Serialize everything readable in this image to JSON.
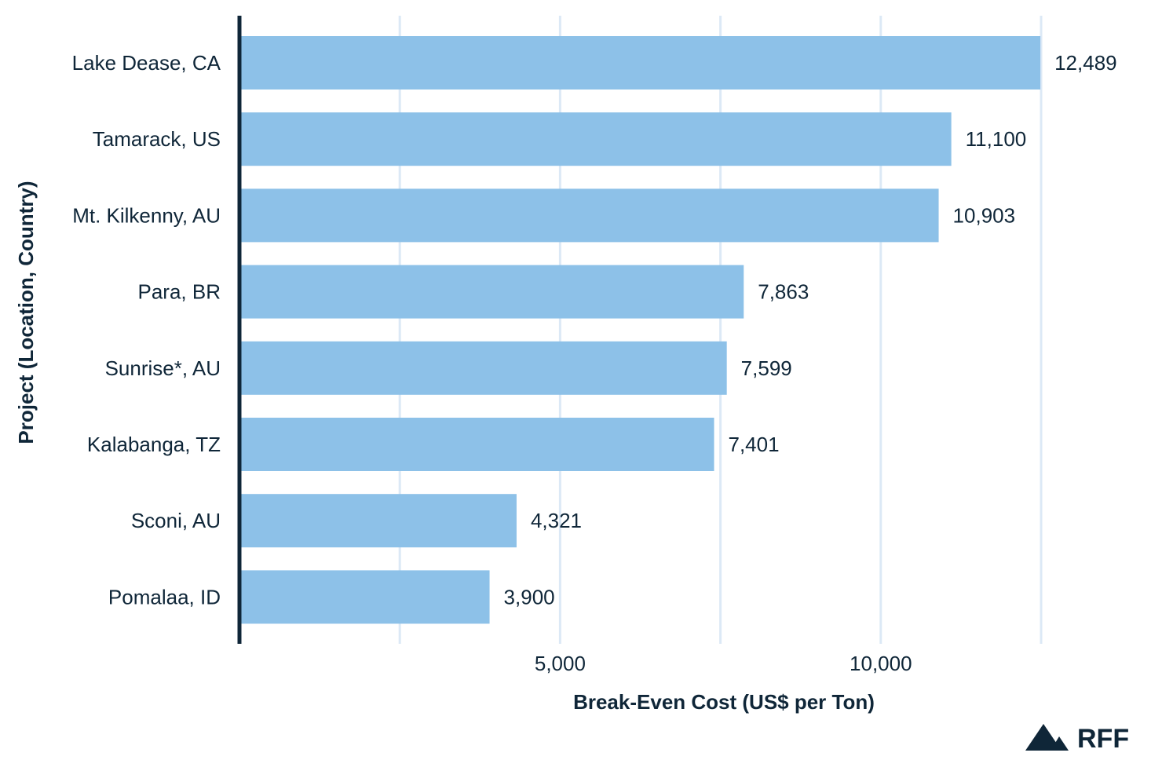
{
  "chart_data": {
    "type": "bar",
    "orientation": "horizontal",
    "categories": [
      "Lake Dease, CA",
      "Tamarack, US",
      "Mt. Kilkenny, AU",
      "Para, BR",
      "Sunrise*, AU",
      "Kalabanga, TZ",
      "Sconi, AU",
      "Pomalaa, ID"
    ],
    "values": [
      12489,
      11100,
      10903,
      7863,
      7599,
      7401,
      4321,
      3900
    ],
    "value_labels": [
      "12,489",
      "11,100",
      "10,903",
      "7,863",
      "7,599",
      "7,401",
      "4,321",
      "3,900"
    ],
    "xlabel": "Break-Even Cost (US$ per Ton)",
    "ylabel": "Project (Location, Country)",
    "xlim": [
      0,
      12500
    ],
    "gridlines": [
      2500,
      5000,
      7500,
      10000,
      12500
    ],
    "ticks": [
      {
        "value": 5000,
        "label": "5,000"
      },
      {
        "value": 10000,
        "label": "10,000"
      }
    ],
    "grid": true,
    "colors": {
      "bar": "#8dc1e8",
      "grid": "#dce9f6",
      "axis": "#0f2638",
      "text": "#0f2638"
    }
  },
  "brand": {
    "text": "RFF",
    "icon": "mountain-logo-icon"
  }
}
